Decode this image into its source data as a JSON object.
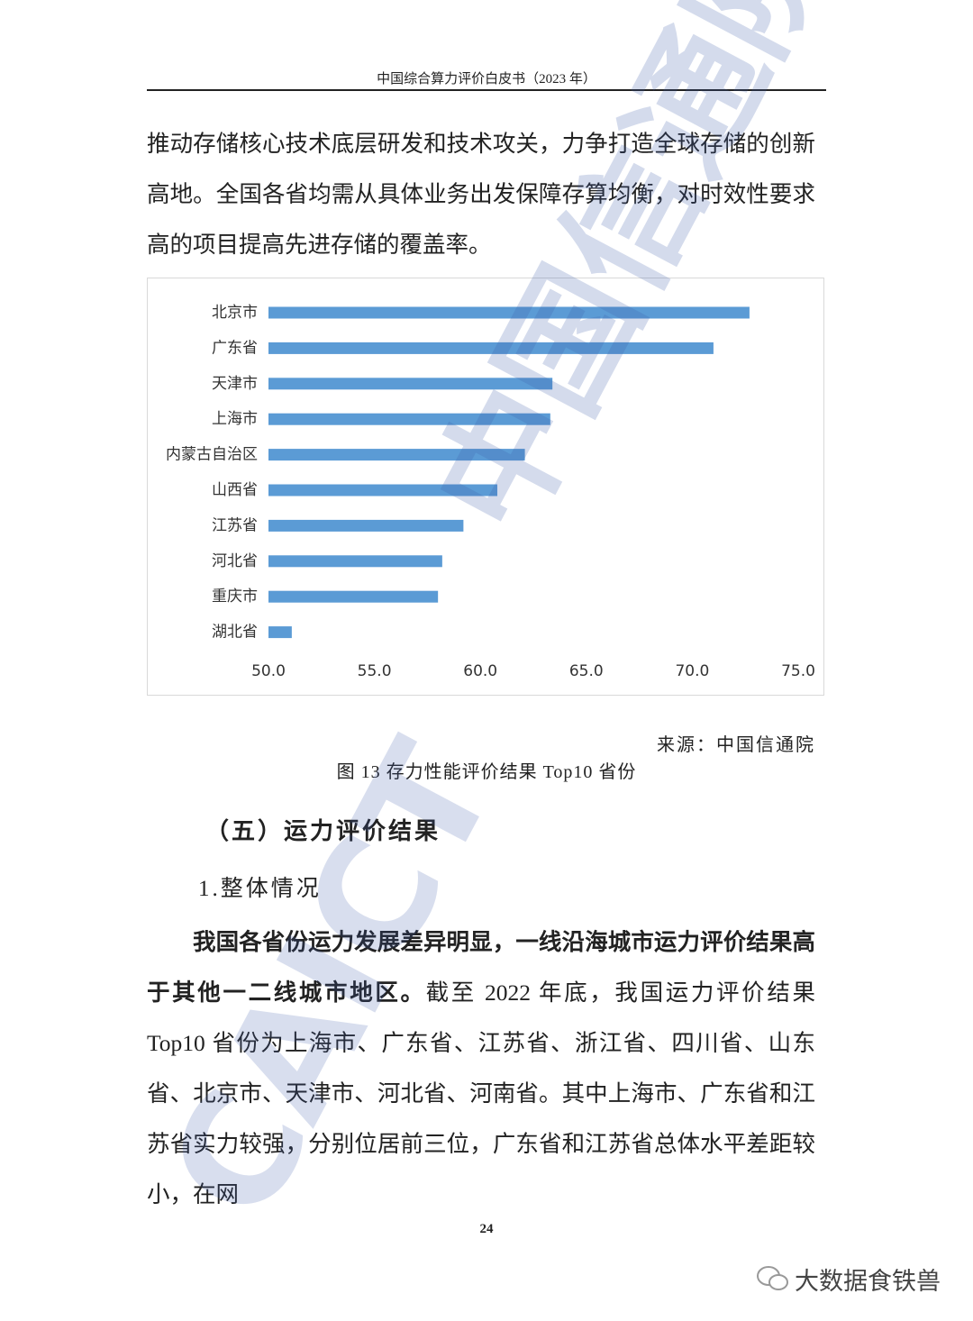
{
  "header": {
    "title": "中国综合算力评价白皮书（2023 年）"
  },
  "paragraphs": [
    {
      "text": "推动存储核心技术底层研发和技术攻关，力争打造全球存储的创新高地。全国各省均需从具体业务出发保障存算均衡，对时效性要求高的项目提高先进存储的覆盖率。"
    }
  ],
  "chart_data": {
    "type": "bar",
    "orientation": "horizontal",
    "color": "#5b9bd5",
    "categories": [
      "北京市",
      "广东省",
      "天津市",
      "上海市",
      "内蒙古自治区",
      "山西省",
      "江苏省",
      "河北省",
      "重庆市",
      "湖北省"
    ],
    "values": [
      72.7,
      71.0,
      63.4,
      63.3,
      62.1,
      60.8,
      59.2,
      58.2,
      58.0,
      51.1
    ],
    "xlim": [
      50,
      75
    ],
    "xticks": [
      {
        "value": 50,
        "label": "50.0"
      },
      {
        "value": 55,
        "label": "55.0"
      },
      {
        "value": 60,
        "label": "60.0"
      },
      {
        "value": 65,
        "label": "65.0"
      },
      {
        "value": 70,
        "label": "70.0"
      },
      {
        "value": 75,
        "label": "75.0"
      }
    ],
    "grid": false
  },
  "figure": {
    "source": "来源：中国信通院",
    "caption": "图 13 存力性能评价结果 Top10 省份"
  },
  "section": {
    "heading": "（五）运力评价结果",
    "subheading": "1.整体情况",
    "paragraph": {
      "bold": "我国各省份运力发展差异明显，一线沿海城市运力评价结果高于其他一二线城市地区。",
      "text": "截至 2022 年底，我国运力评价结果 Top10 省份为上海市、广东省、江苏省、浙江省、四川省、山东省、北京市、天津市、河北省、河南省。其中上海市、广东省和江苏省实力较强，分别位居前三位，广东省和江苏省总体水平差距较小，在网"
    }
  },
  "footer": {
    "page_number": "24",
    "account": "大数据食铁兽"
  },
  "watermark": {
    "text": "中国信通院",
    "logo": "CAICT"
  }
}
